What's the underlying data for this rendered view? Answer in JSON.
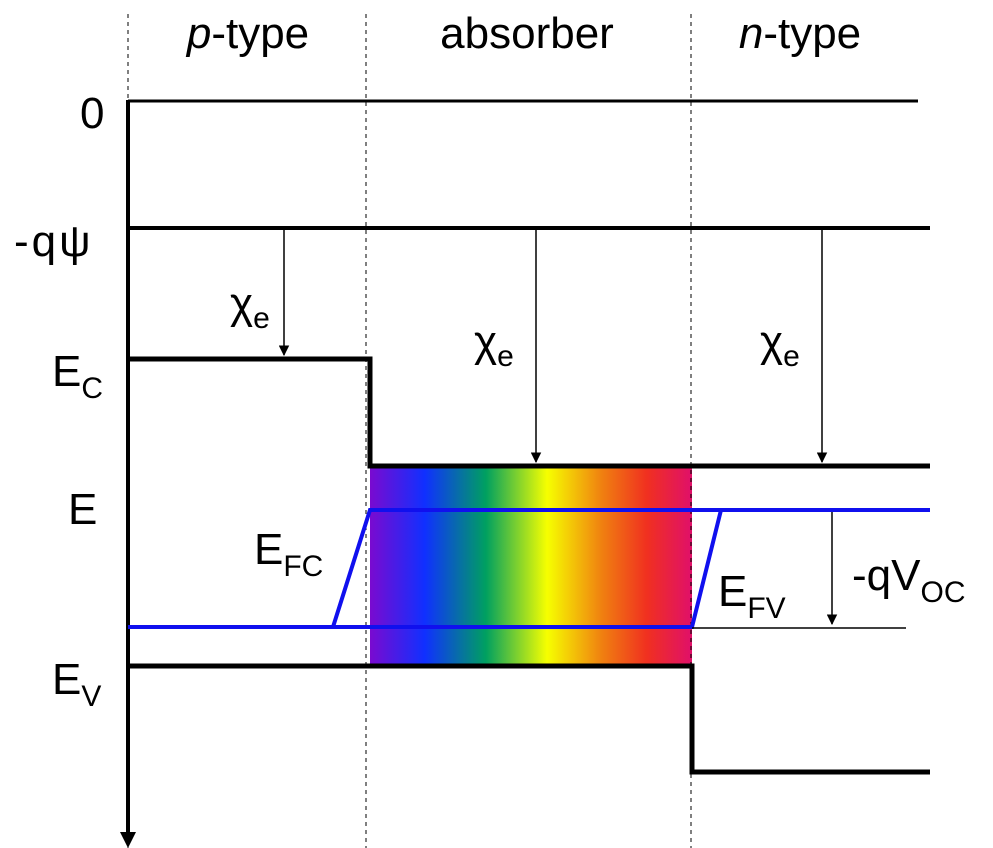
{
  "regions": {
    "p": {
      "prefix": "p",
      "suffix": "-type"
    },
    "absorber": "absorber",
    "n": {
      "prefix": "n",
      "suffix": "-type"
    }
  },
  "levels": {
    "zero": "0",
    "vacuum": "-qψ",
    "ec": {
      "main": "E",
      "sub": "C"
    },
    "e": "E",
    "ev": {
      "main": "E",
      "sub": "V"
    }
  },
  "annotations": {
    "chi": {
      "main": "χ",
      "sub": "e"
    },
    "efc": {
      "main": "E",
      "sub": "FC"
    },
    "efv": {
      "main": "E",
      "sub": "FV"
    },
    "voc": {
      "main": "-qV",
      "sub": "OC"
    }
  },
  "colors": {
    "band": "#000000",
    "quasi_fermi": "#1010ee",
    "spectrum": [
      "#7a0ad0",
      "#1030ff",
      "#00a060",
      "#f6ff00",
      "#f08010",
      "#f03020",
      "#e0106a"
    ]
  }
}
